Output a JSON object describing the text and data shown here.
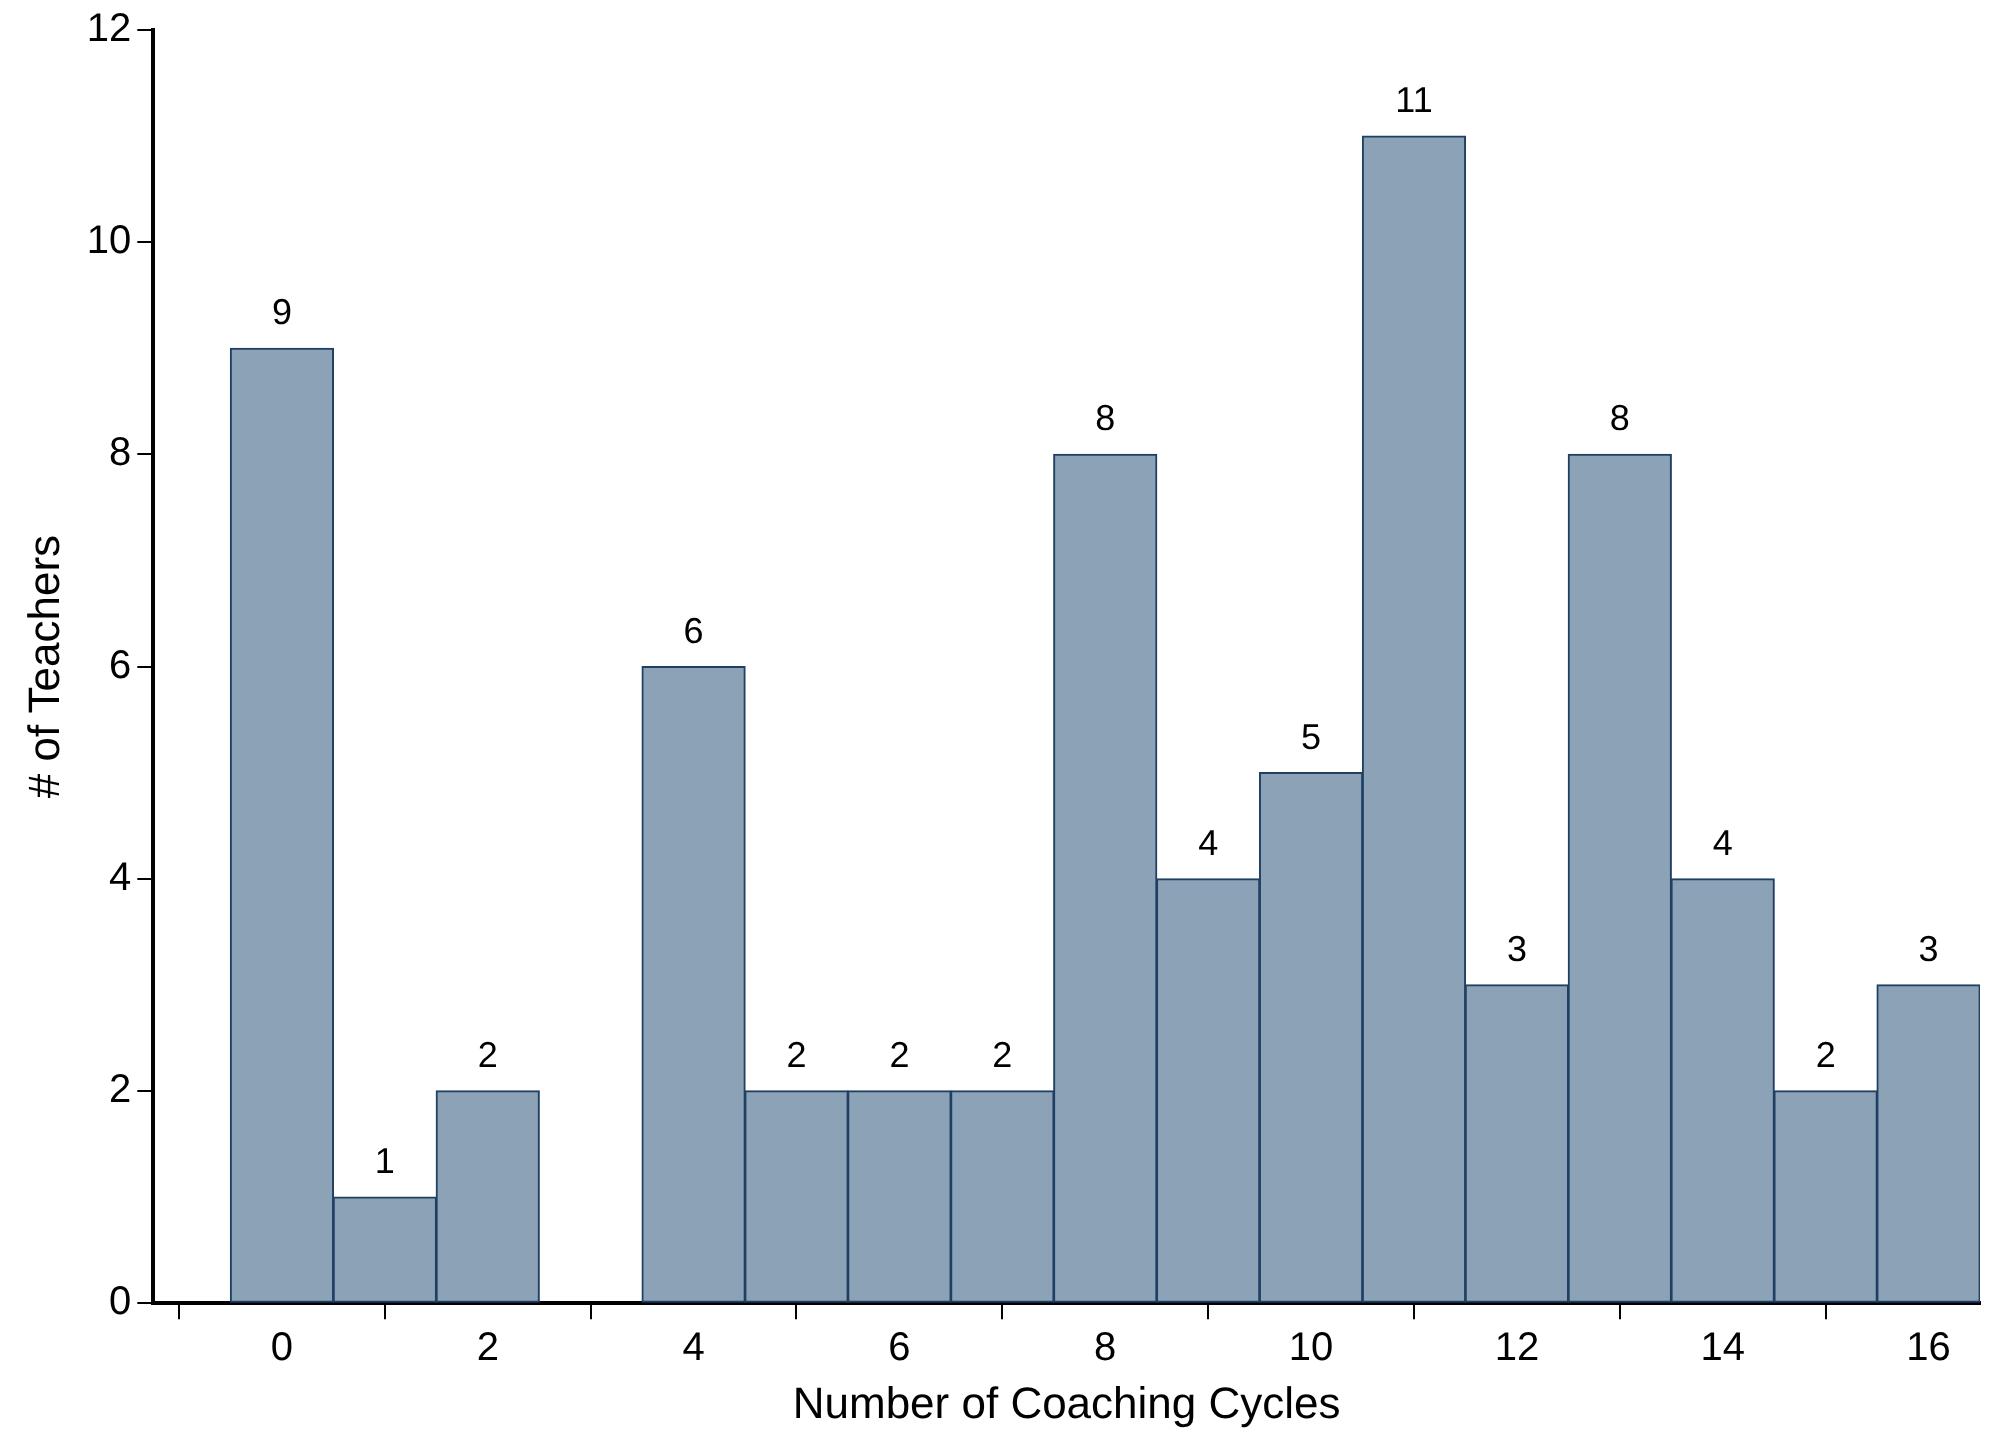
{
  "chart_data": {
    "type": "histogram",
    "xlabel": "Number of Coaching Cycles",
    "ylabel": "# of Teachers",
    "bins": [
      -0.5,
      0.5,
      1.5,
      2.5,
      3.5,
      4.5,
      5.5,
      6.5,
      7.5,
      8.5,
      9.5,
      10.5,
      11.5,
      12.5,
      13.5,
      14.5,
      15.5,
      16.5
    ],
    "values": [
      9,
      1,
      2,
      0,
      6,
      2,
      2,
      2,
      8,
      4,
      5,
      11,
      3,
      8,
      4,
      2,
      3
    ],
    "value_labels": [
      "9",
      "1",
      "2",
      null,
      "6",
      "2",
      "2",
      "2",
      "8",
      "4",
      "5",
      "11",
      "3",
      "8",
      "4",
      "2",
      "3"
    ],
    "color": "#8ca2b7",
    "xlim": [
      -1.25,
      16.5
    ],
    "xticks": [
      0,
      2,
      4,
      6,
      8,
      10,
      12,
      14,
      16
    ],
    "ylim": [
      0,
      12
    ],
    "yticks": [
      0,
      2,
      4,
      6,
      8,
      10,
      12
    ],
    "grid": false,
    "legend": false
  }
}
